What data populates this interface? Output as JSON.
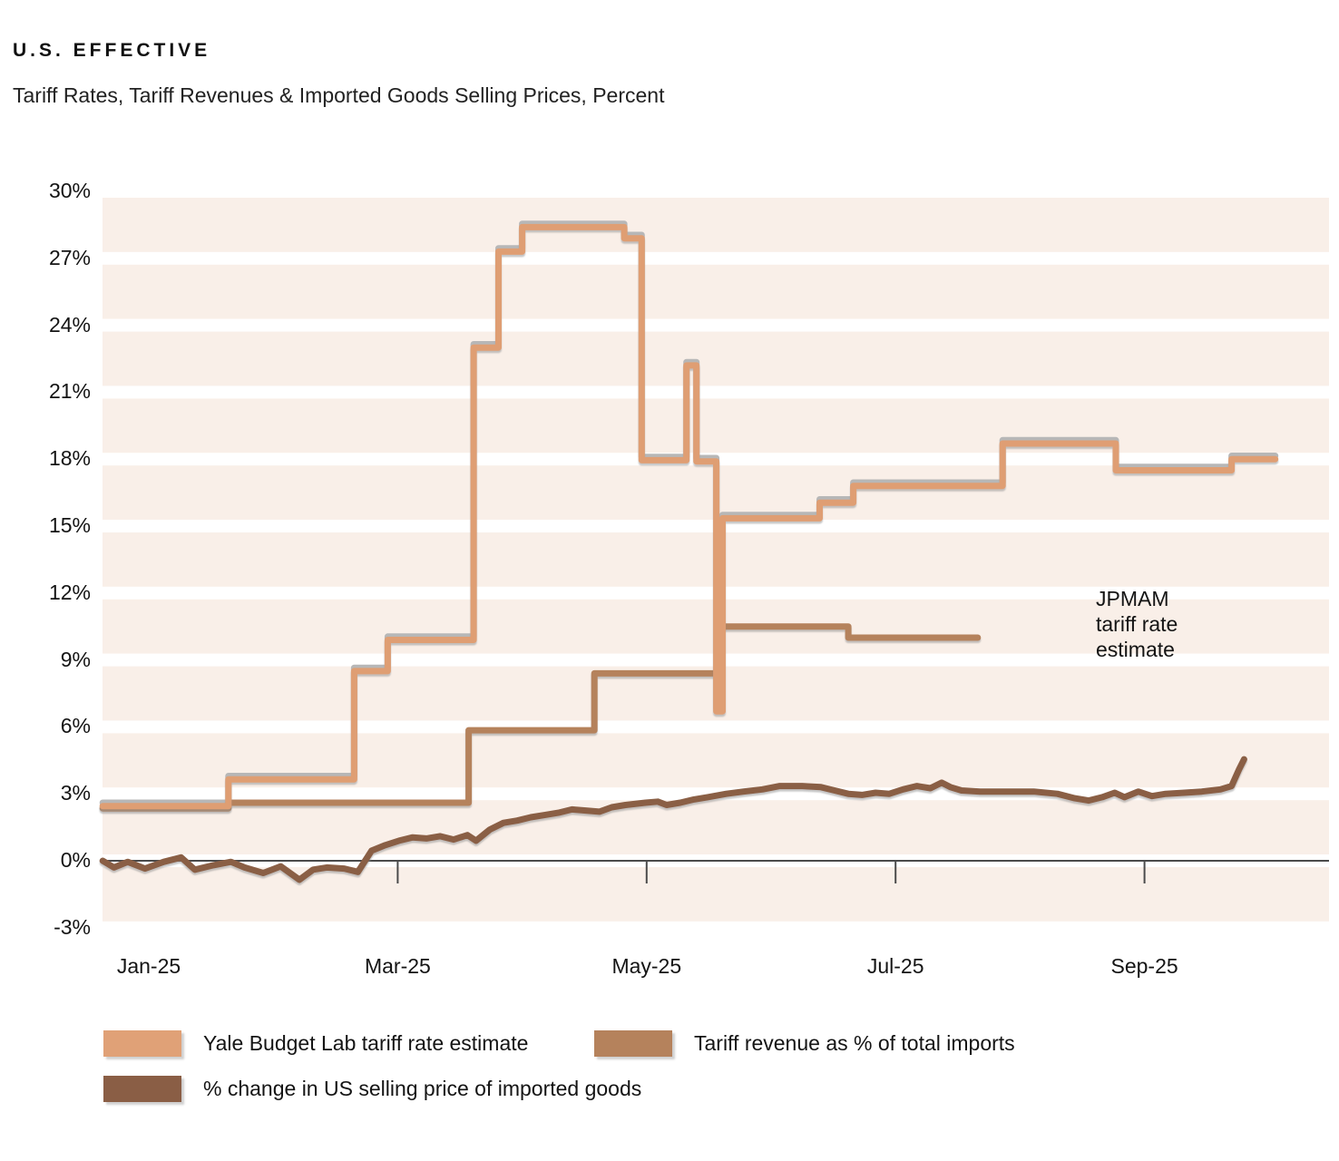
{
  "header": {
    "kicker": "U.S. EFFECTIVE",
    "subtitle": "Tariff Rates, Tariff Revenues & Imported Goods Selling Prices, Percent"
  },
  "annotation": {
    "lines": [
      "JPMAM",
      "tariff rate",
      "estimate"
    ]
  },
  "legend": [
    {
      "label": "Yale Budget Lab tariff rate estimate",
      "color": "#e0a177"
    },
    {
      "label": "Tariff revenue as % of total imports",
      "color": "#b5825c"
    },
    {
      "label": "% change in US selling price of imported goods",
      "color": "#8a5e45"
    }
  ],
  "colors": {
    "yale": "#df9e73",
    "jpmam": "#b7b7b7",
    "revenue": "#b5825c",
    "price": "#8a5e45",
    "stripe": "#f9efe8",
    "axis": "#4b4b4b",
    "background": "#ffffff"
  },
  "chart_data": {
    "type": "line",
    "title": "U.S. Effective Tariff Rates, Tariff Revenues & Imported Goods Selling Prices, Percent",
    "xlabel": "",
    "ylabel": "Percent",
    "ylim": [
      -3,
      30
    ],
    "ytick_step": 3,
    "grid": "horizontal-stripes",
    "legend_position": "bottom",
    "yticks": [
      {
        "value": 30,
        "label": "30%"
      },
      {
        "value": 27,
        "label": "27%"
      },
      {
        "value": 24,
        "label": "24%"
      },
      {
        "value": 21,
        "label": "21%"
      },
      {
        "value": 18,
        "label": "18%"
      },
      {
        "value": 15,
        "label": "15%"
      },
      {
        "value": 12,
        "label": "12%"
      },
      {
        "value": 9,
        "label": "9%"
      },
      {
        "value": 6,
        "label": "6%"
      },
      {
        "value": 3,
        "label": "3%"
      },
      {
        "value": 0,
        "label": "0%"
      },
      {
        "value": -3,
        "label": "-3%"
      }
    ],
    "xticks": [
      {
        "m": 0,
        "label": "Jan-25",
        "axis_tick": false
      },
      {
        "m": 2,
        "label": "Mar-25",
        "axis_tick": true
      },
      {
        "m": 4,
        "label": "May-25",
        "axis_tick": true
      },
      {
        "m": 6,
        "label": "Jul-25",
        "axis_tick": true
      },
      {
        "m": 8,
        "label": "Sep-25",
        "axis_tick": true
      }
    ],
    "x_unit": "months since Jan-25",
    "series": [
      {
        "id": "jpmam",
        "name": "JPMAM tariff rate estimate",
        "style": "step",
        "points": [
          [
            -0.37,
            2.6
          ],
          [
            0.64,
            2.6
          ],
          [
            0.64,
            3.8
          ],
          [
            1.65,
            3.8
          ],
          [
            1.65,
            8.65
          ],
          [
            1.92,
            8.65
          ],
          [
            1.92,
            10.05
          ],
          [
            2.61,
            10.05
          ],
          [
            2.61,
            23.15
          ],
          [
            2.81,
            23.15
          ],
          [
            2.81,
            27.45
          ],
          [
            3.0,
            27.45
          ],
          [
            3.0,
            28.55
          ],
          [
            3.82,
            28.55
          ],
          [
            3.82,
            28.05
          ],
          [
            3.96,
            28.05
          ],
          [
            3.96,
            18.1
          ],
          [
            4.32,
            18.1
          ],
          [
            4.32,
            22.35
          ],
          [
            4.4,
            22.35
          ],
          [
            4.4,
            18.05
          ],
          [
            4.56,
            18.05
          ],
          [
            4.56,
            6.85
          ],
          [
            4.61,
            6.85
          ],
          [
            4.61,
            15.5
          ],
          [
            5.39,
            15.5
          ],
          [
            5.39,
            16.2
          ],
          [
            5.66,
            16.2
          ],
          [
            5.66,
            16.95
          ],
          [
            6.86,
            16.95
          ],
          [
            6.86,
            18.85
          ],
          [
            7.77,
            18.85
          ],
          [
            7.77,
            17.65
          ],
          [
            8.7,
            17.65
          ],
          [
            8.7,
            18.15
          ],
          [
            9.05,
            18.15
          ]
        ]
      },
      {
        "id": "revenue",
        "name": "Tariff revenue as % of total imports",
        "style": "step",
        "points": [
          [
            -0.37,
            2.35
          ],
          [
            0.64,
            2.35
          ],
          [
            0.64,
            2.6
          ],
          [
            2.57,
            2.6
          ],
          [
            2.57,
            5.85
          ],
          [
            3.58,
            5.85
          ],
          [
            3.58,
            8.4
          ],
          [
            4.6,
            8.4
          ],
          [
            4.6,
            10.5
          ],
          [
            5.62,
            10.5
          ],
          [
            5.62,
            10.0
          ],
          [
            6.66,
            10.0
          ]
        ]
      },
      {
        "id": "yale",
        "name": "Yale Budget Lab tariff rate estimate",
        "style": "step",
        "points": [
          [
            -0.37,
            2.45
          ],
          [
            0.64,
            2.45
          ],
          [
            0.64,
            3.65
          ],
          [
            1.65,
            3.65
          ],
          [
            1.65,
            8.5
          ],
          [
            1.92,
            8.5
          ],
          [
            1.92,
            9.9
          ],
          [
            2.61,
            9.9
          ],
          [
            2.61,
            23.0
          ],
          [
            2.81,
            23.0
          ],
          [
            2.81,
            27.3
          ],
          [
            3.0,
            27.3
          ],
          [
            3.0,
            28.4
          ],
          [
            3.82,
            28.4
          ],
          [
            3.82,
            27.9
          ],
          [
            3.96,
            27.9
          ],
          [
            3.96,
            17.95
          ],
          [
            4.32,
            17.95
          ],
          [
            4.32,
            22.2
          ],
          [
            4.4,
            22.2
          ],
          [
            4.4,
            17.9
          ],
          [
            4.56,
            17.9
          ],
          [
            4.56,
            6.7
          ],
          [
            4.61,
            6.7
          ],
          [
            4.61,
            15.35
          ],
          [
            5.39,
            15.35
          ],
          [
            5.39,
            16.05
          ],
          [
            5.66,
            16.05
          ],
          [
            5.66,
            16.8
          ],
          [
            6.86,
            16.8
          ],
          [
            6.86,
            18.7
          ],
          [
            7.77,
            18.7
          ],
          [
            7.77,
            17.5
          ],
          [
            8.7,
            17.5
          ],
          [
            8.7,
            18.0
          ],
          [
            9.05,
            18.0
          ]
        ]
      },
      {
        "id": "price",
        "name": "% change in US selling price of imported goods",
        "style": "line",
        "points": [
          [
            -0.37,
            0
          ],
          [
            -0.28,
            -0.3
          ],
          [
            -0.17,
            -0.05
          ],
          [
            -0.03,
            -0.35
          ],
          [
            0.12,
            -0.05
          ],
          [
            0.26,
            0.15
          ],
          [
            0.37,
            -0.4
          ],
          [
            0.52,
            -0.2
          ],
          [
            0.66,
            -0.05
          ],
          [
            0.77,
            -0.3
          ],
          [
            0.92,
            -0.55
          ],
          [
            1.06,
            -0.25
          ],
          [
            1.21,
            -0.85
          ],
          [
            1.32,
            -0.4
          ],
          [
            1.43,
            -0.3
          ],
          [
            1.57,
            -0.35
          ],
          [
            1.68,
            -0.5
          ],
          [
            1.79,
            0.45
          ],
          [
            1.9,
            0.7
          ],
          [
            2.01,
            0.9
          ],
          [
            2.12,
            1.05
          ],
          [
            2.23,
            1.0
          ],
          [
            2.34,
            1.1
          ],
          [
            2.45,
            0.95
          ],
          [
            2.56,
            1.15
          ],
          [
            2.63,
            0.9
          ],
          [
            2.74,
            1.4
          ],
          [
            2.85,
            1.7
          ],
          [
            2.96,
            1.8
          ],
          [
            3.07,
            1.95
          ],
          [
            3.18,
            2.05
          ],
          [
            3.29,
            2.15
          ],
          [
            3.4,
            2.3
          ],
          [
            3.51,
            2.25
          ],
          [
            3.62,
            2.2
          ],
          [
            3.72,
            2.4
          ],
          [
            3.83,
            2.5
          ],
          [
            3.99,
            2.6
          ],
          [
            4.09,
            2.65
          ],
          [
            4.16,
            2.5
          ],
          [
            4.27,
            2.6
          ],
          [
            4.38,
            2.75
          ],
          [
            4.49,
            2.85
          ],
          [
            4.64,
            3.0
          ],
          [
            4.78,
            3.1
          ],
          [
            4.93,
            3.2
          ],
          [
            5.07,
            3.35
          ],
          [
            5.25,
            3.35
          ],
          [
            5.4,
            3.3
          ],
          [
            5.51,
            3.15
          ],
          [
            5.62,
            3.0
          ],
          [
            5.73,
            2.95
          ],
          [
            5.84,
            3.05
          ],
          [
            5.95,
            3.0
          ],
          [
            6.06,
            3.2
          ],
          [
            6.17,
            3.35
          ],
          [
            6.28,
            3.25
          ],
          [
            6.37,
            3.5
          ],
          [
            6.44,
            3.3
          ],
          [
            6.53,
            3.15
          ],
          [
            6.68,
            3.1
          ],
          [
            6.9,
            3.1
          ],
          [
            7.11,
            3.1
          ],
          [
            7.3,
            3.0
          ],
          [
            7.44,
            2.8
          ],
          [
            7.55,
            2.7
          ],
          [
            7.66,
            2.85
          ],
          [
            7.76,
            3.05
          ],
          [
            7.84,
            2.85
          ],
          [
            7.95,
            3.1
          ],
          [
            8.06,
            2.9
          ],
          [
            8.17,
            3.0
          ],
          [
            8.32,
            3.05
          ],
          [
            8.46,
            3.1
          ],
          [
            8.61,
            3.2
          ],
          [
            8.7,
            3.35
          ],
          [
            8.76,
            4.1
          ],
          [
            8.8,
            4.55
          ]
        ]
      }
    ]
  }
}
